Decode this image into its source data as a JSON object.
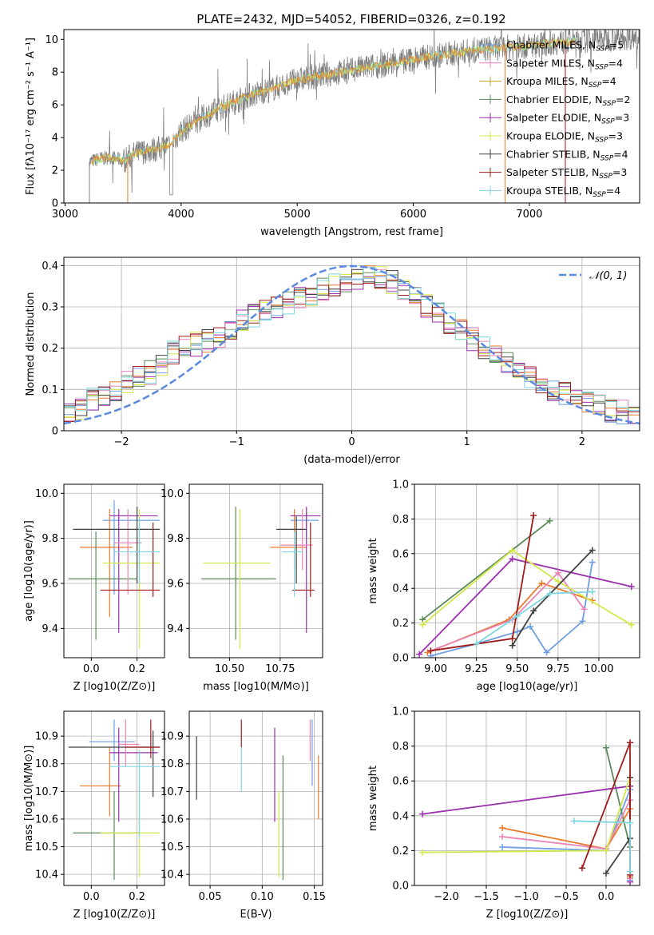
{
  "colors": [
    "#6f9fe0",
    "#ea7b2c",
    "#5a8a5a",
    "#9b2fae",
    "#e884b8",
    "#d4e84a",
    "#404040",
    "#a01c1c",
    "#7fd6df"
  ],
  "chart_data": [
    {
      "id": "spectrum",
      "type": "line",
      "title": "PLATE=2432, MJD=54052, FIBERID=0326, z=0.192",
      "xlabel": "wavelength [Angstrom, rest frame]",
      "ylabel": "Flux [fλ10⁻¹⁷ erg cm⁻² s⁻¹ A⁻¹]",
      "xlim": [
        2990,
        7950
      ],
      "ylim": [
        0,
        10.6
      ],
      "xticks": [
        3000,
        4000,
        5000,
        6000,
        7000
      ],
      "yticks": [
        0,
        2,
        4,
        6,
        8,
        10
      ],
      "legend_position": "upper right",
      "legend": [
        "Chabrier MILES, N_SSP=5",
        "Salpeter MILES, N_SSP=4",
        "Kroupa MILES, N_SSP=4",
        "Chabrier ELODIE, N_SSP=2",
        "Salpeter ELODIE, N_SSP=3",
        "Kroupa ELODIE, N_SSP=3",
        "Chabrier STELIB, N_SSP=4",
        "Salpeter STELIB, N_SSP=3",
        "Kroupa STELIB, N_SSP=4"
      ],
      "legend_colors": [
        "#6f9fe0",
        "#e884b8",
        "#c8a030",
        "#5a8a5a",
        "#9b2fae",
        "#d4e84a",
        "#404040",
        "#a01c1c",
        "#7fd6df"
      ],
      "data_color": "#808080",
      "continuum": {
        "x": [
          3200,
          3300,
          3400,
          3500,
          3600,
          3700,
          3800,
          3900,
          4000,
          4200,
          4400,
          4600,
          4800,
          5000,
          5200,
          5400,
          5600,
          5800,
          6000,
          6200,
          6400,
          6600,
          6800,
          7000,
          7200,
          7400,
          7600,
          7800,
          7950
        ],
        "y": [
          2.5,
          2.7,
          2.8,
          2.6,
          3.0,
          3.2,
          3.3,
          3.5,
          4.4,
          5.3,
          6.0,
          6.6,
          7.0,
          7.5,
          7.8,
          8.0,
          8.3,
          8.5,
          8.8,
          9.0,
          9.2,
          9.4,
          9.5,
          9.6,
          9.8,
          9.9,
          10.0,
          10.1,
          10.2
        ]
      }
    },
    {
      "id": "residuals",
      "type": "step",
      "xlabel": "(data-model)/error",
      "ylabel": "Normed distribution",
      "xlim": [
        -2.5,
        2.5
      ],
      "ylim": [
        0,
        0.42
      ],
      "xticks": [
        -2,
        -1,
        0,
        1,
        2
      ],
      "yticks": [
        0.0,
        0.1,
        0.2,
        0.3,
        0.4
      ],
      "legend": [
        "𝒩(0, 1)"
      ],
      "legend_position": "upper right",
      "gauss_color": "#5a8ae0",
      "bin_edges": [
        -2.5,
        -2.4,
        -2.3,
        -2.2,
        -2.1,
        -2.0,
        -1.9,
        -1.8,
        -1.7,
        -1.6,
        -1.5,
        -1.4,
        -1.3,
        -1.2,
        -1.1,
        -1.0,
        -0.9,
        -0.8,
        -0.7,
        -0.6,
        -0.5,
        -0.4,
        -0.3,
        -0.2,
        -0.1,
        0.0,
        0.1,
        0.2,
        0.3,
        0.4,
        0.5,
        0.6,
        0.7,
        0.8,
        0.9,
        1.0,
        1.1,
        1.2,
        1.3,
        1.4,
        1.5,
        1.6,
        1.7,
        1.8,
        1.9,
        2.0,
        2.1,
        2.2,
        2.3,
        2.4,
        2.5
      ],
      "base": [
        0.045,
        0.05,
        0.08,
        0.09,
        0.1,
        0.12,
        0.13,
        0.14,
        0.16,
        0.19,
        0.2,
        0.21,
        0.22,
        0.23,
        0.25,
        0.27,
        0.28,
        0.29,
        0.3,
        0.31,
        0.32,
        0.33,
        0.34,
        0.35,
        0.36,
        0.37,
        0.38,
        0.37,
        0.36,
        0.34,
        0.32,
        0.3,
        0.28,
        0.26,
        0.24,
        0.22,
        0.2,
        0.18,
        0.16,
        0.14,
        0.13,
        0.11,
        0.1,
        0.09,
        0.08,
        0.07,
        0.06,
        0.05,
        0.045,
        0.04
      ]
    },
    {
      "id": "age_vs_Z",
      "type": "errorbar",
      "xlabel": "Z [log10(Z/Z⊙)]",
      "ylabel": "age  [log10(age/yr)]",
      "xlim": [
        -0.12,
        0.32
      ],
      "ylim": [
        9.27,
        10.04
      ],
      "xticks": [
        0.0,
        0.2
      ],
      "xticklabels": [
        "0.0",
        "0.2"
      ],
      "yticks": [
        9.4,
        9.6,
        9.8,
        10.0
      ],
      "yticklabels": [
        "9.4",
        "9.6",
        "9.8",
        "10.0"
      ],
      "points": [
        {
          "x": 0.1,
          "y": 9.88,
          "xlo": 0.05,
          "xhi": 0.3,
          "ylo": 9.55,
          "yhi": 9.97
        },
        {
          "x": 0.08,
          "y": 9.76,
          "xlo": -0.05,
          "xhi": 0.18,
          "ylo": 9.45,
          "yhi": 9.93
        },
        {
          "x": 0.02,
          "y": 9.62,
          "xlo": -0.1,
          "xhi": 0.2,
          "ylo": 9.35,
          "yhi": 9.83
        },
        {
          "x": 0.12,
          "y": 9.9,
          "xlo": 0.08,
          "xhi": 0.29,
          "ylo": 9.38,
          "yhi": 9.93
        },
        {
          "x": 0.16,
          "y": 9.78,
          "xlo": 0.1,
          "xhi": 0.22,
          "ylo": 9.55,
          "yhi": 9.93
        },
        {
          "x": 0.21,
          "y": 9.69,
          "xlo": 0.05,
          "xhi": 0.3,
          "ylo": 9.31,
          "yhi": 9.93
        },
        {
          "x": 0.2,
          "y": 9.84,
          "xlo": -0.08,
          "xhi": 0.3,
          "ylo": 9.6,
          "yhi": 9.94
        },
        {
          "x": 0.27,
          "y": 9.57,
          "xlo": 0.04,
          "xhi": 0.3,
          "ylo": 9.54,
          "yhi": 9.87
        },
        {
          "x": 0.21,
          "y": 9.74,
          "xlo": 0.1,
          "xhi": 0.3,
          "ylo": 9.6,
          "yhi": 9.89
        }
      ]
    },
    {
      "id": "age_vs_mass",
      "type": "errorbar",
      "xlabel": "mass [log10(M/M⊙)]",
      "ylabel": "",
      "xlim": [
        10.3,
        10.96
      ],
      "ylim": [
        9.27,
        10.04
      ],
      "xticks": [
        10.5,
        10.75
      ],
      "xticklabels": [
        "10.50",
        "10.75"
      ],
      "yticks": [
        9.4,
        9.6,
        9.8,
        10.0
      ],
      "yticklabels": [
        "9.4",
        "9.6",
        "9.8",
        "10.0"
      ],
      "points": [
        {
          "x": 10.88,
          "y": 9.88,
          "xlo": 10.8,
          "xhi": 10.94,
          "ylo": 9.8,
          "yhi": 9.92
        },
        {
          "x": 10.82,
          "y": 9.76,
          "xlo": 10.7,
          "xhi": 10.88,
          "ylo": 9.66,
          "yhi": 9.93
        },
        {
          "x": 10.53,
          "y": 9.62,
          "xlo": 10.36,
          "xhi": 10.73,
          "ylo": 9.35,
          "yhi": 9.94
        },
        {
          "x": 10.88,
          "y": 9.9,
          "xlo": 10.8,
          "xhi": 10.95,
          "ylo": 9.38,
          "yhi": 9.94
        },
        {
          "x": 10.86,
          "y": 9.77,
          "xlo": 10.75,
          "xhi": 10.91,
          "ylo": 9.66,
          "yhi": 9.93
        },
        {
          "x": 10.55,
          "y": 9.69,
          "xlo": 10.37,
          "xhi": 10.7,
          "ylo": 9.31,
          "yhi": 9.93
        },
        {
          "x": 10.83,
          "y": 9.84,
          "xlo": 10.73,
          "xhi": 10.88,
          "ylo": 9.6,
          "yhi": 9.9
        },
        {
          "x": 10.9,
          "y": 9.57,
          "xlo": 10.81,
          "xhi": 10.92,
          "ylo": 9.54,
          "yhi": 9.87
        },
        {
          "x": 10.82,
          "y": 9.74,
          "xlo": 10.76,
          "xhi": 10.86,
          "ylo": 9.54,
          "yhi": 9.83
        }
      ]
    },
    {
      "id": "weight_vs_age",
      "type": "line",
      "xlabel": "age  [log10(age/yr)]",
      "ylabel": "mass weight",
      "xlim": [
        8.87,
        10.25
      ],
      "ylim": [
        0,
        1
      ],
      "xticks": [
        9.0,
        9.25,
        9.5,
        9.75,
        10.0
      ],
      "xticklabels": [
        "9.00",
        "9.25",
        "9.50",
        "9.75",
        "10.00"
      ],
      "yticks": [
        0,
        0.2,
        0.4,
        0.6,
        0.8,
        1.0
      ],
      "yticklabels": [
        "0.0",
        "0.2",
        "0.4",
        "0.6",
        "0.8",
        "1.0"
      ],
      "series": [
        {
          "x": [
            8.97,
            9.25,
            9.5,
            9.58,
            9.68,
            9.9,
            9.96
          ],
          "y": [
            0.01,
            0.08,
            0.15,
            0.18,
            0.03,
            0.21,
            0.55
          ]
        },
        {
          "x": [
            8.95,
            9.45,
            9.65,
            9.96
          ],
          "y": [
            0.03,
            0.22,
            0.43,
            0.33
          ]
        },
        {
          "x": [
            8.92,
            9.7
          ],
          "y": [
            0.22,
            0.79
          ]
        },
        {
          "x": [
            8.9,
            9.47,
            10.2
          ],
          "y": [
            0.02,
            0.57,
            0.41
          ]
        },
        {
          "x": [
            8.97,
            9.47,
            9.75,
            9.91
          ],
          "y": [
            0.04,
            0.22,
            0.49,
            0.28
          ]
        },
        {
          "x": [
            8.92,
            9.47,
            9.75,
            10.2
          ],
          "y": [
            0.19,
            0.62,
            0.44,
            0.19
          ]
        },
        {
          "x": [
            9.47,
            9.6,
            9.96
          ],
          "y": [
            0.07,
            0.27,
            0.62
          ]
        },
        {
          "x": [
            8.97,
            9.47,
            9.6
          ],
          "y": [
            0.04,
            0.11,
            0.82
          ]
        },
        {
          "x": [
            9.25,
            9.5,
            9.7,
            9.96
          ],
          "y": [
            0.08,
            0.24,
            0.37,
            0.38
          ]
        }
      ]
    },
    {
      "id": "mass_vs_Z",
      "type": "errorbar",
      "xlabel": "Z [log10(Z/Z⊙)]",
      "ylabel": "mass [log10(M/M⊙)]",
      "xlim": [
        -0.12,
        0.32
      ],
      "ylim": [
        10.36,
        10.99
      ],
      "xticks": [
        0.0,
        0.2
      ],
      "xticklabels": [
        "0.0",
        "0.2"
      ],
      "yticks": [
        10.4,
        10.5,
        10.6,
        10.7,
        10.8,
        10.9
      ],
      "yticklabels": [
        "10.4",
        "10.5",
        "10.6",
        "10.7",
        "10.8",
        "10.9"
      ],
      "points": [
        {
          "x": 0.1,
          "y": 10.88,
          "xlo": -0.01,
          "xhi": 0.19,
          "ylo": 10.81,
          "yhi": 10.96
        },
        {
          "x": 0.08,
          "y": 10.72,
          "xlo": -0.05,
          "xhi": 0.13,
          "ylo": 10.61,
          "yhi": 10.86
        },
        {
          "x": 0.1,
          "y": 10.55,
          "xlo": -0.08,
          "xhi": 0.21,
          "ylo": 10.38,
          "yhi": 10.7
        },
        {
          "x": 0.12,
          "y": 10.84,
          "xlo": 0.08,
          "xhi": 0.29,
          "ylo": 10.59,
          "yhi": 10.93
        },
        {
          "x": 0.15,
          "y": 10.87,
          "xlo": 0.12,
          "xhi": 0.21,
          "ylo": 10.79,
          "yhi": 10.96
        },
        {
          "x": 0.21,
          "y": 10.55,
          "xlo": 0.04,
          "xhi": 0.3,
          "ylo": 10.39,
          "yhi": 10.71
        },
        {
          "x": 0.27,
          "y": 10.86,
          "xlo": -0.1,
          "xhi": 0.3,
          "ylo": 10.68,
          "yhi": 10.92
        },
        {
          "x": 0.26,
          "y": 10.86,
          "xlo": 0.15,
          "xhi": 0.3,
          "ylo": 10.82,
          "yhi": 10.96
        },
        {
          "x": 0.21,
          "y": 10.79,
          "xlo": 0.08,
          "xhi": 0.3,
          "ylo": 10.53,
          "yhi": 10.85
        }
      ]
    },
    {
      "id": "mass_vs_ebv",
      "type": "errorbar",
      "xlabel": "E(B-V)",
      "ylabel": "",
      "xlim": [
        0.03,
        0.158
      ],
      "ylim": [
        10.36,
        10.99
      ],
      "xticks": [
        0.05,
        0.1,
        0.15
      ],
      "xticklabels": [
        "0.05",
        "0.10",
        "0.15"
      ],
      "yticks": [
        10.4,
        10.5,
        10.6,
        10.7,
        10.8,
        10.9
      ],
      "yticklabels": [
        "10.4",
        "10.5",
        "10.6",
        "10.7",
        "10.8",
        "10.9"
      ],
      "points": [
        {
          "x": 0.148,
          "y": 10.84,
          "ylo": 10.72,
          "yhi": 10.96
        },
        {
          "x": 0.154,
          "y": 10.72,
          "ylo": 10.6,
          "yhi": 10.83
        },
        {
          "x": 0.12,
          "y": 10.56,
          "ylo": 10.38,
          "yhi": 10.83
        },
        {
          "x": 0.112,
          "y": 10.78,
          "ylo": 10.59,
          "yhi": 10.93
        },
        {
          "x": 0.146,
          "y": 10.88,
          "ylo": 10.81,
          "yhi": 10.96
        },
        {
          "x": 0.116,
          "y": 10.55,
          "ylo": 10.39,
          "yhi": 10.7
        },
        {
          "x": 0.037,
          "y": 10.78,
          "ylo": 10.67,
          "yhi": 10.9
        },
        {
          "x": 0.08,
          "y": 10.91,
          "ylo": 10.86,
          "yhi": 10.96
        },
        {
          "x": 0.08,
          "y": 10.8,
          "ylo": 10.7,
          "yhi": 10.86
        }
      ]
    },
    {
      "id": "weight_vs_Z",
      "type": "line",
      "xlabel": "Z [log10(Z/Z⊙)]",
      "ylabel": "mass weight",
      "xlim": [
        -2.4,
        0.42
      ],
      "ylim": [
        0,
        1
      ],
      "xticks": [
        -2.0,
        -1.5,
        -1.0,
        -0.5,
        0.0
      ],
      "xticklabels": [
        "−2.0",
        "−1.5",
        "−1.0",
        "−0.5",
        "0.0"
      ],
      "yticks": [
        0,
        0.2,
        0.4,
        0.6,
        0.8,
        1.0
      ],
      "yticklabels": [
        "0.0",
        "0.2",
        "0.4",
        "0.6",
        "0.8",
        "1.0"
      ],
      "series": [
        {
          "x": [
            -1.3,
            0.0,
            0.3,
            0.3
          ],
          "y": [
            0.22,
            0.2,
            0.55,
            0.03
          ]
        },
        {
          "x": [
            -1.3,
            0.0,
            0.3,
            0.3
          ],
          "y": [
            0.33,
            0.21,
            0.44,
            0.05
          ]
        },
        {
          "x": [
            0.0,
            0.3
          ],
          "y": [
            0.79,
            0.22
          ]
        },
        {
          "x": [
            -2.3,
            0.3,
            0.3
          ],
          "y": [
            0.41,
            0.57,
            0.02
          ]
        },
        {
          "x": [
            -1.3,
            0.0,
            0.3,
            0.3
          ],
          "y": [
            0.28,
            0.21,
            0.49,
            0.04
          ]
        },
        {
          "x": [
            -2.3,
            0.0,
            0.3
          ],
          "y": [
            0.19,
            0.2,
            0.62
          ]
        },
        {
          "x": [
            0.0,
            0.3,
            0.3
          ],
          "y": [
            0.07,
            0.27,
            0.62
          ]
        },
        {
          "x": [
            -0.3,
            0.3,
            0.3
          ],
          "y": [
            0.1,
            0.82,
            0.06
          ]
        },
        {
          "x": [
            -0.4,
            0.3,
            0.3
          ],
          "y": [
            0.37,
            0.36,
            0.08
          ]
        }
      ]
    }
  ]
}
